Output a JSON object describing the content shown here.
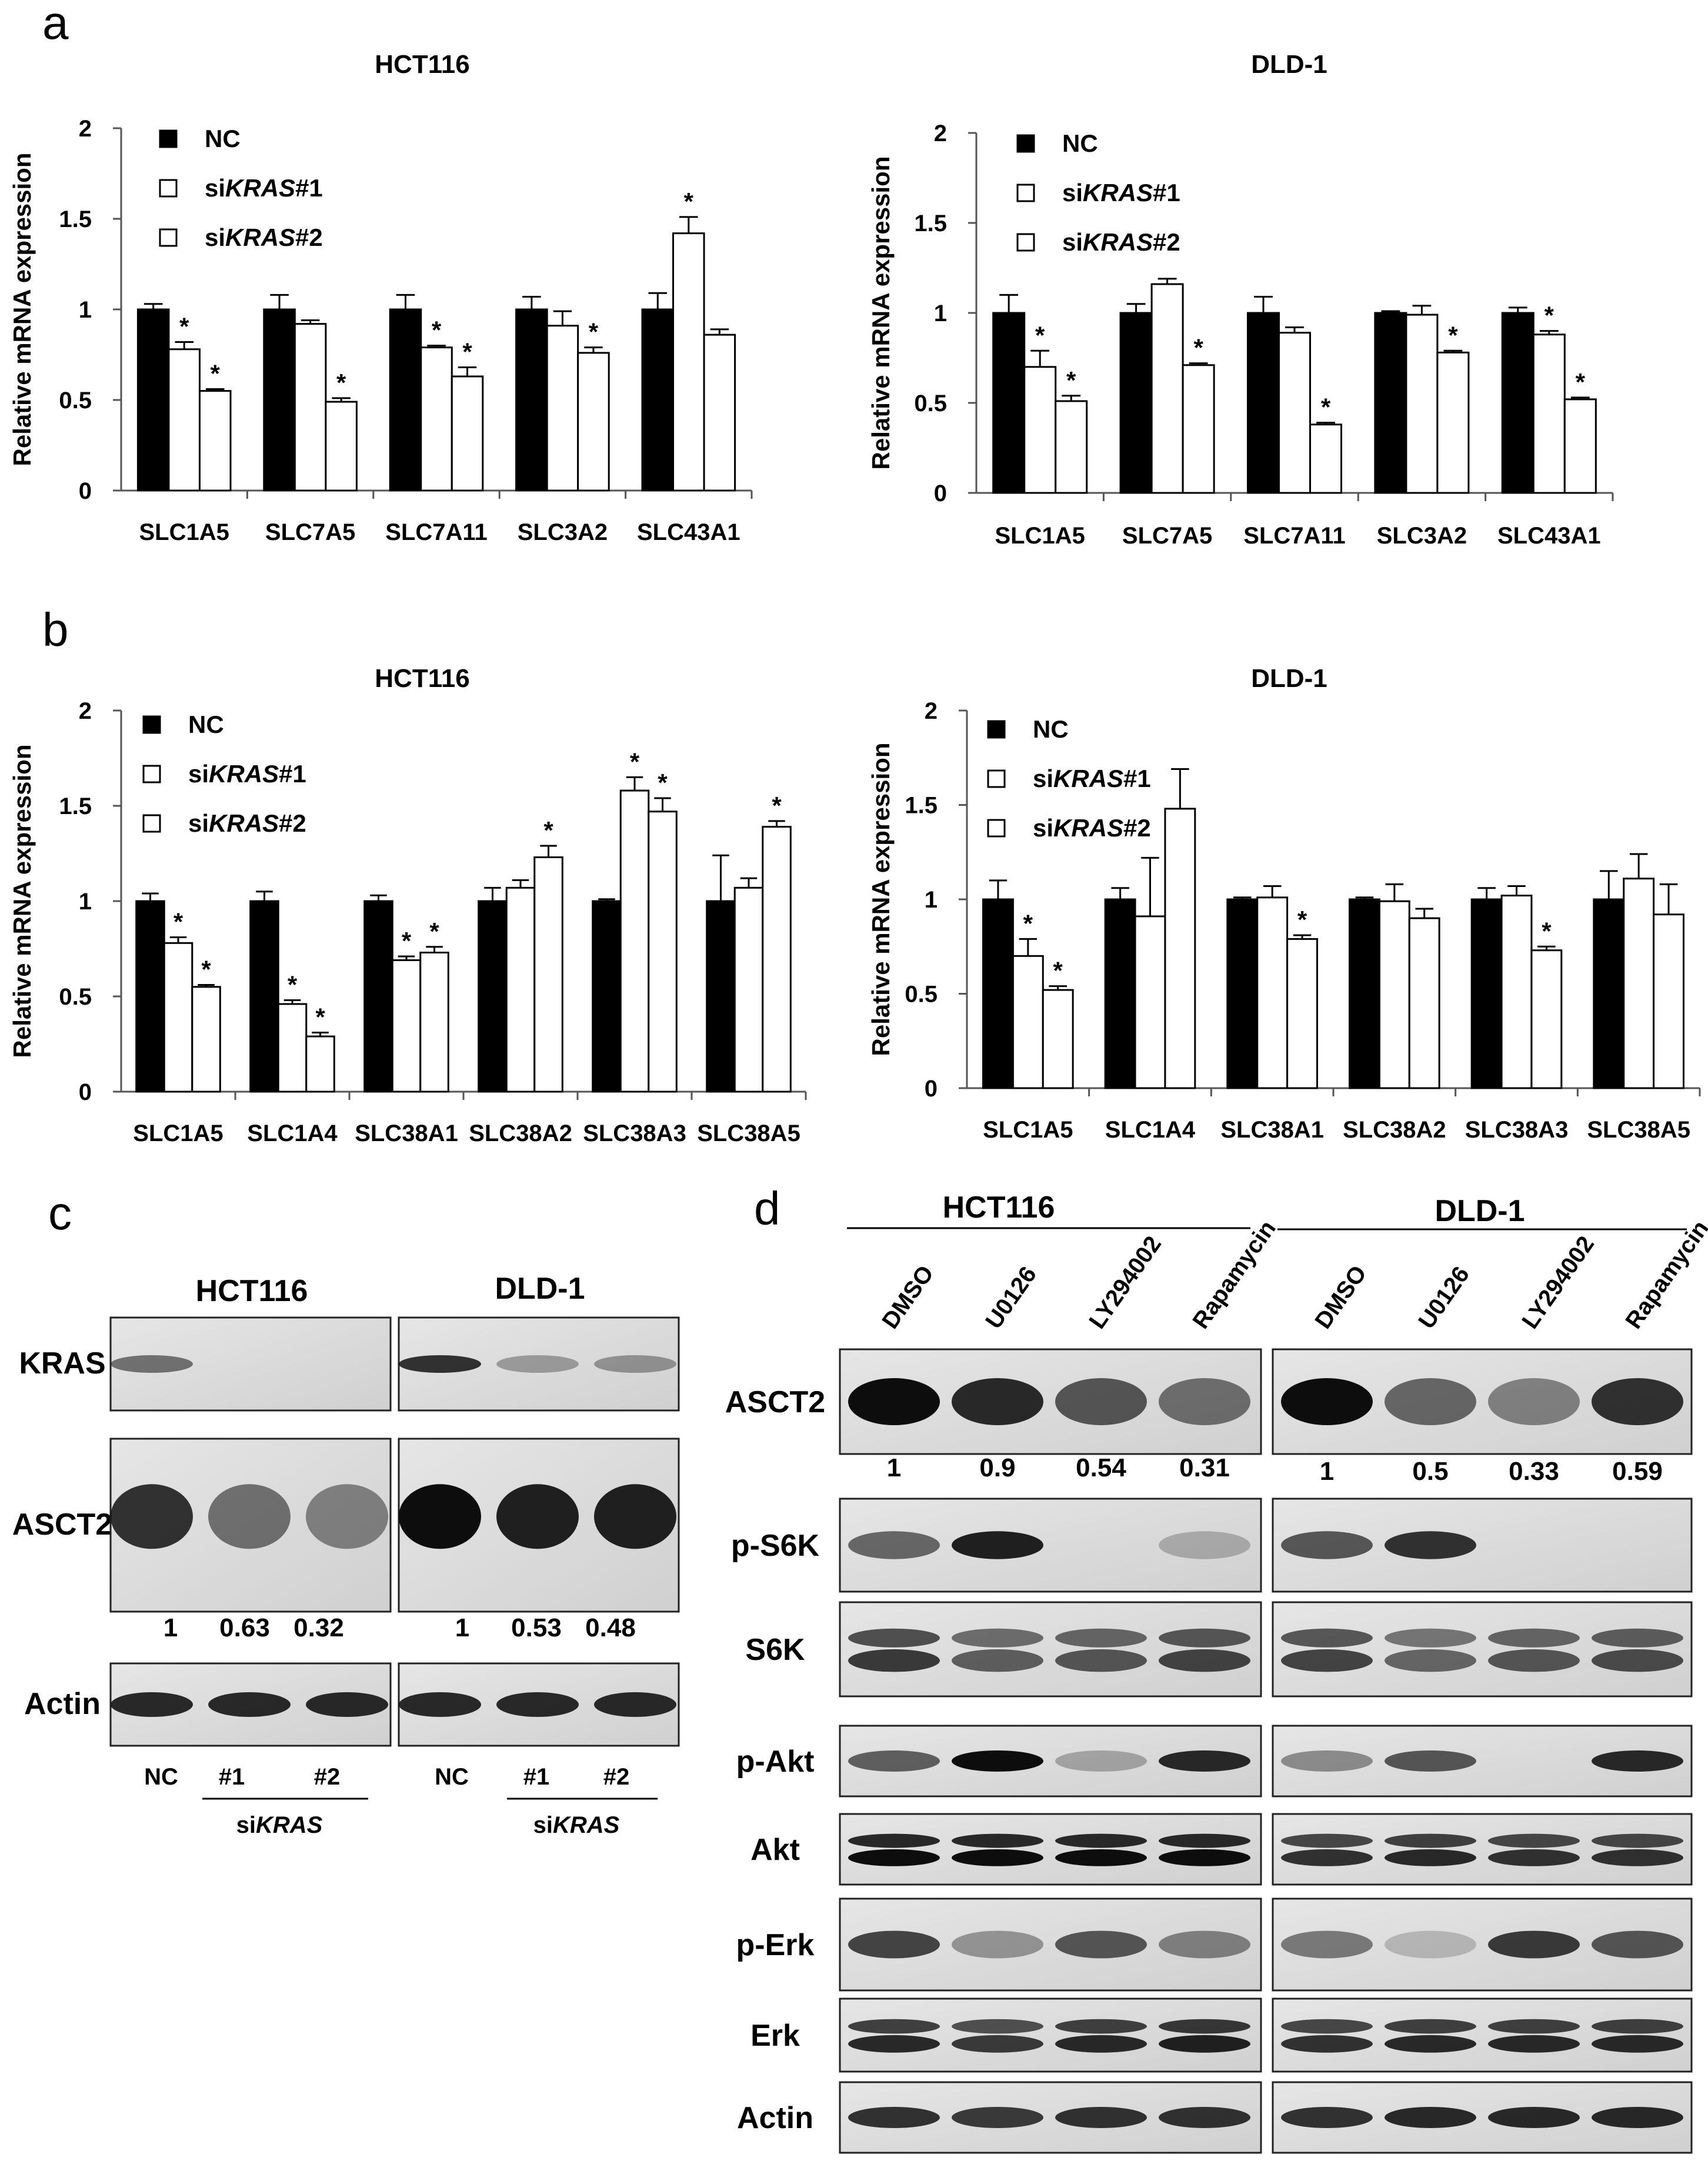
{
  "panels": {
    "a": "a",
    "b": "b",
    "c": "c",
    "d": "d"
  },
  "colors": {
    "nc": "#000000",
    "sikras1": "#ffffff",
    "sikras2": "#ffffff",
    "axis": "#555555",
    "blot_bg": "#e2e2e2",
    "band": "#111111"
  },
  "legend": {
    "nc": "NC",
    "s1_prefix": "si",
    "s1_gene": "KRAS",
    "s1_suffix": "#1",
    "s2_prefix": "si",
    "s2_gene": "KRAS",
    "s2_suffix": "#2"
  },
  "chart_data": [
    {
      "id": "a-hct116",
      "type": "bar",
      "title": "HCT116",
      "ylabel": "Relative mRNA expression",
      "xlabel": "",
      "ylim": [
        0,
        2
      ],
      "yticks": [
        "0",
        "0.5",
        "1",
        "1.5",
        "2"
      ],
      "categories": [
        "SLC1A5",
        "SLC7A5",
        "SLC7A11",
        "SLC3A2",
        "SLC43A1"
      ],
      "series": [
        {
          "name": "NC",
          "values": [
            1.0,
            1.0,
            1.0,
            1.0,
            1.0
          ],
          "errors": [
            0.03,
            0.08,
            0.08,
            0.07,
            0.09
          ],
          "stars": [
            0,
            0,
            0,
            0,
            0
          ]
        },
        {
          "name": "siKRAS#1",
          "values": [
            0.78,
            0.92,
            0.79,
            0.91,
            1.42
          ],
          "errors": [
            0.04,
            0.02,
            0.01,
            0.08,
            0.09
          ],
          "stars": [
            1,
            0,
            1,
            0,
            1
          ]
        },
        {
          "name": "siKRAS#2",
          "values": [
            0.55,
            0.49,
            0.63,
            0.76,
            0.86
          ],
          "errors": [
            0.01,
            0.02,
            0.05,
            0.03,
            0.03
          ],
          "stars": [
            1,
            1,
            1,
            1,
            0
          ]
        }
      ]
    },
    {
      "id": "a-dld1",
      "type": "bar",
      "title": "DLD-1",
      "ylabel": "Relative mRNA expression",
      "xlabel": "",
      "ylim": [
        0,
        2
      ],
      "yticks": [
        "0",
        "0.5",
        "1",
        "1.5",
        "2"
      ],
      "categories": [
        "SLC1A5",
        "SLC7A5",
        "SLC7A11",
        "SLC3A2",
        "SLC43A1"
      ],
      "series": [
        {
          "name": "NC",
          "values": [
            1.0,
            1.0,
            1.0,
            1.0,
            1.0
          ],
          "errors": [
            0.1,
            0.05,
            0.09,
            0.01,
            0.03
          ],
          "stars": [
            0,
            0,
            0,
            0,
            0
          ]
        },
        {
          "name": "siKRAS#1",
          "values": [
            0.7,
            1.16,
            0.89,
            0.99,
            0.88
          ],
          "errors": [
            0.09,
            0.03,
            0.03,
            0.05,
            0.02
          ],
          "stars": [
            1,
            0,
            0,
            0,
            1
          ]
        },
        {
          "name": "siKRAS#2",
          "values": [
            0.51,
            0.71,
            0.38,
            0.78,
            0.52
          ],
          "errors": [
            0.03,
            0.01,
            0.01,
            0.01,
            0.01
          ],
          "stars": [
            1,
            1,
            1,
            1,
            1
          ]
        }
      ]
    },
    {
      "id": "b-hct116",
      "type": "bar",
      "title": "HCT116",
      "ylabel": "Relative mRNA expression",
      "xlabel": "",
      "ylim": [
        0,
        2
      ],
      "yticks": [
        "0",
        "0.5",
        "1",
        "1.5",
        "2"
      ],
      "categories": [
        "SLC1A5",
        "SLC1A4",
        "SLC38A1",
        "SLC38A2",
        "SLC38A3",
        "SLC38A5"
      ],
      "series": [
        {
          "name": "NC",
          "values": [
            1.0,
            1.0,
            1.0,
            1.0,
            1.0,
            1.0
          ],
          "errors": [
            0.04,
            0.05,
            0.03,
            0.07,
            0.01,
            0.24
          ],
          "stars": [
            0,
            0,
            0,
            0,
            0,
            0
          ]
        },
        {
          "name": "siKRAS#1",
          "values": [
            0.78,
            0.46,
            0.69,
            1.07,
            1.58,
            1.07
          ],
          "errors": [
            0.03,
            0.02,
            0.02,
            0.04,
            0.07,
            0.05
          ],
          "stars": [
            1,
            1,
            1,
            0,
            1,
            0
          ]
        },
        {
          "name": "siKRAS#2",
          "values": [
            0.55,
            0.29,
            0.73,
            1.23,
            1.47,
            1.39
          ],
          "errors": [
            0.01,
            0.02,
            0.03,
            0.06,
            0.07,
            0.03
          ],
          "stars": [
            1,
            1,
            1,
            1,
            1,
            1
          ]
        }
      ]
    },
    {
      "id": "b-dld1",
      "type": "bar",
      "title": "DLD-1",
      "ylabel": "Relative mRNA expression",
      "xlabel": "",
      "ylim": [
        0,
        2
      ],
      "yticks": [
        "0",
        "0.5",
        "1",
        "1.5",
        "2"
      ],
      "categories": [
        "SLC1A5",
        "SLC1A4",
        "SLC38A1",
        "SLC38A2",
        "SLC38A3",
        "SLC38A5"
      ],
      "series": [
        {
          "name": "NC",
          "values": [
            1.0,
            1.0,
            1.0,
            1.0,
            1.0,
            1.0
          ],
          "errors": [
            0.1,
            0.06,
            0.01,
            0.01,
            0.06,
            0.15
          ],
          "stars": [
            0,
            0,
            0,
            0,
            0,
            0
          ]
        },
        {
          "name": "siKRAS#1",
          "values": [
            0.7,
            0.91,
            1.01,
            0.99,
            1.02,
            1.11
          ],
          "errors": [
            0.09,
            0.31,
            0.06,
            0.09,
            0.05,
            0.13
          ],
          "stars": [
            1,
            0,
            0,
            0,
            0,
            0
          ]
        },
        {
          "name": "siKRAS#2",
          "values": [
            0.52,
            1.48,
            0.79,
            0.9,
            0.73,
            0.92
          ],
          "errors": [
            0.02,
            0.21,
            0.02,
            0.05,
            0.02,
            0.16
          ],
          "stars": [
            1,
            0,
            1,
            0,
            1,
            0
          ]
        }
      ]
    }
  ],
  "blot_c": {
    "cell_hct": "HCT116",
    "cell_dld": "DLD-1",
    "row_kras": "KRAS",
    "row_asct2": "ASCT2",
    "row_actin": "Actin",
    "quant_hct": [
      "1",
      "0.63",
      "0.32"
    ],
    "quant_dld": [
      "1",
      "0.53",
      "0.48"
    ],
    "lane_nc": "NC",
    "lane_1": "#1",
    "lane_2": "#2",
    "si_prefix": "si",
    "si_gene": "KRAS",
    "kras_hct_level": [
      0.45,
      0.0,
      0.0
    ],
    "kras_dld_level": [
      0.8,
      0.2,
      0.25
    ],
    "asct2_hct_level": [
      0.8,
      0.45,
      0.35
    ],
    "asct2_dld_level": [
      1.0,
      0.9,
      0.9
    ],
    "actin_level": [
      0.85,
      0.85,
      0.85
    ]
  },
  "blot_d": {
    "cell_hct": "HCT116",
    "cell_dld": "DLD-1",
    "treatments": [
      "DMSO",
      "U0126",
      "LY294002",
      "Rapamycin"
    ],
    "rows": [
      "ASCT2",
      "p-S6K",
      "S6K",
      "p-Akt",
      "Akt",
      "p-Erk",
      "Erk",
      "Actin"
    ],
    "quant_hct": [
      "1",
      "0.9",
      "0.54",
      "0.31"
    ],
    "quant_dld": [
      "1",
      "0.5",
      "0.33",
      "0.59"
    ],
    "levels_hct": {
      "ASCT2": [
        1.0,
        0.85,
        0.6,
        0.45
      ],
      "p-S6K": [
        0.5,
        0.9,
        0.0,
        0.1
      ],
      "S6K": [
        0.75,
        0.55,
        0.6,
        0.7
      ],
      "p-Akt": [
        0.55,
        1.0,
        0.15,
        0.85
      ],
      "Akt": [
        1.0,
        1.0,
        1.0,
        1.0
      ],
      "p-Erk": [
        0.7,
        0.25,
        0.6,
        0.35
      ],
      "Erk": [
        0.85,
        0.75,
        0.85,
        0.9
      ],
      "Actin": [
        0.8,
        0.75,
        0.8,
        0.8
      ]
    },
    "levels_dld": {
      "ASCT2": [
        1.0,
        0.5,
        0.35,
        0.8
      ],
      "p-S6K": [
        0.6,
        0.8,
        0.0,
        0.0
      ],
      "S6K": [
        0.7,
        0.5,
        0.6,
        0.65
      ],
      "p-Akt": [
        0.3,
        0.6,
        0.0,
        0.85
      ],
      "Akt": [
        0.8,
        0.85,
        0.8,
        0.8
      ],
      "p-Erk": [
        0.4,
        0.05,
        0.75,
        0.6
      ],
      "Erk": [
        0.8,
        0.85,
        0.85,
        0.85
      ],
      "Actin": [
        0.8,
        0.85,
        0.85,
        0.85
      ]
    }
  }
}
